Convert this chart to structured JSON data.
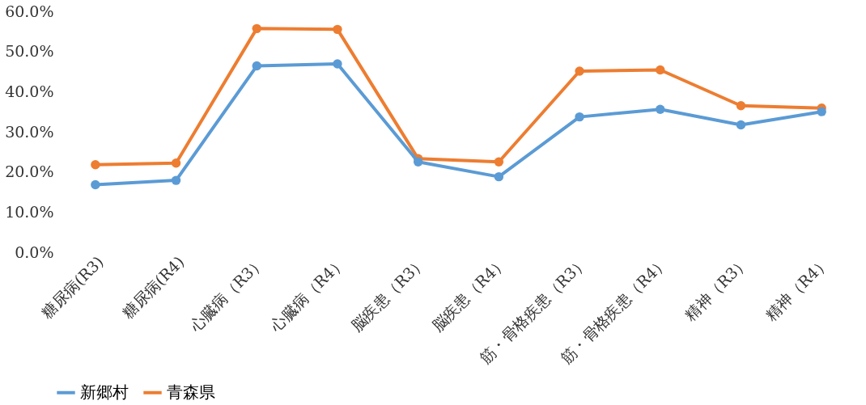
{
  "chart_data": {
    "type": "line",
    "categories": [
      "糖尿病(R3)",
      "糖尿病(R4)",
      "心臓病（R3）",
      "心臓病（R4）",
      "脳疾患（R3）",
      "脳疾患（R4）",
      "筋・骨格疾患（R3）",
      "筋・骨格疾患（R4）",
      "精神（R3）",
      "精神（R4）"
    ],
    "series": [
      {
        "name": "新郷村",
        "color": "#5b9bd5",
        "values": [
          16.8,
          17.9,
          46.4,
          46.9,
          22.5,
          18.8,
          33.7,
          35.6,
          31.7,
          35.0
        ]
      },
      {
        "name": "青森県",
        "color": "#ed7d31",
        "values": [
          21.8,
          22.2,
          55.7,
          55.5,
          23.3,
          22.5,
          45.1,
          45.4,
          36.5,
          35.9
        ]
      }
    ],
    "ylim": [
      0,
      60
    ],
    "yticks": [
      {
        "value": 0,
        "label": "0.0%"
      },
      {
        "value": 10,
        "label": "10.0%"
      },
      {
        "value": 20,
        "label": "20.0%"
      },
      {
        "value": 30,
        "label": "30.0%"
      },
      {
        "value": 40,
        "label": "40.0%"
      },
      {
        "value": 50,
        "label": "50.0%"
      },
      {
        "value": 60,
        "label": "60.0%"
      }
    ],
    "marker": "circle",
    "line_style": "solid",
    "grid": false,
    "legend": "bottom"
  }
}
